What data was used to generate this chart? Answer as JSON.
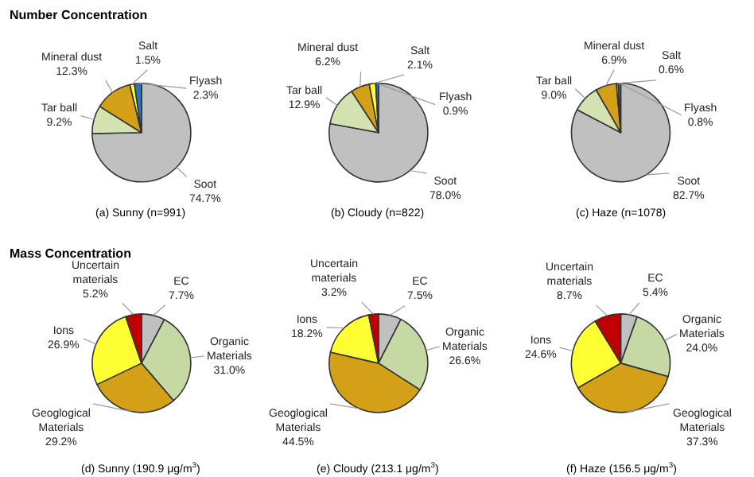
{
  "chart_data": [
    {
      "type": "pie",
      "title": "Number Concentration",
      "annotations": [
        "(a) Sunny (n=991)"
      ],
      "categories": [
        "Soot",
        "Tar ball",
        "Mineral dust",
        "Salt",
        "Flyash"
      ],
      "values": [
        74.7,
        9.2,
        12.3,
        1.5,
        2.3
      ],
      "value_labels": [
        "74.7%",
        "9.2%",
        "12.3%",
        "1.5%",
        "2.3%"
      ],
      "colors": [
        "#c0c0c0",
        "#d3e2b0",
        "#d4a017",
        "#ffff33",
        "#2e75b6"
      ]
    },
    {
      "type": "pie",
      "annotations": [
        "(b) Cloudy (n=822)"
      ],
      "categories": [
        "Soot",
        "Tar ball",
        "Mineral dust",
        "Salt",
        "Flyash"
      ],
      "values": [
        78.0,
        12.9,
        6.2,
        2.1,
        0.9
      ],
      "value_labels": [
        "78.0%",
        "12.9%",
        "6.2%",
        "2.1%",
        "0.9%"
      ],
      "colors": [
        "#c0c0c0",
        "#d3e2b0",
        "#d4a017",
        "#ffff33",
        "#2e75b6"
      ]
    },
    {
      "type": "pie",
      "annotations": [
        "(c) Haze (n=1078)"
      ],
      "categories": [
        "Soot",
        "Tar ball",
        "Mineral dust",
        "Salt",
        "Flyash"
      ],
      "values": [
        82.7,
        9.0,
        6.9,
        0.6,
        0.8
      ],
      "value_labels": [
        "82.7%",
        "9.0%",
        "6.9%",
        "0.6%",
        "0.8%"
      ],
      "colors": [
        "#c0c0c0",
        "#d3e2b0",
        "#d4a017",
        "#ffff33",
        "#2e75b6"
      ]
    },
    {
      "type": "pie",
      "title": "Mass Concentration",
      "annotations": [
        "(d) Sunny (190.9 μg/m$^{3}$)"
      ],
      "categories": [
        "EC",
        "Organic\nMaterials",
        "Geoglogical\nMaterials",
        "Ions",
        "Uncertain\nmaterials"
      ],
      "values": [
        7.7,
        31.0,
        29.2,
        26.9,
        5.2
      ],
      "value_labels": [
        "7.7%",
        "31.0%",
        "29.2%",
        "26.9%",
        "5.2%"
      ],
      "colors": [
        "#c0c0c0",
        "#c6d9a4",
        "#d4a017",
        "#ffff33",
        "#c00000"
      ]
    },
    {
      "type": "pie",
      "annotations": [
        "(e) Cloudy (213.1 μg/m$^{3}$)"
      ],
      "categories": [
        "EC",
        "Organic\nMaterials",
        "Geoglogical\nMaterials",
        "Ions",
        "Uncertain\nmaterials"
      ],
      "values": [
        7.5,
        26.6,
        44.5,
        18.2,
        3.2
      ],
      "value_labels": [
        "7.5%",
        "26.6%",
        "44.5%",
        "18.2%",
        "3.2%"
      ],
      "colors": [
        "#c0c0c0",
        "#c6d9a4",
        "#d4a017",
        "#ffff33",
        "#c00000"
      ]
    },
    {
      "type": "pie",
      "annotations": [
        "(f) Haze (156.5 μg/m$^{3}$)"
      ],
      "categories": [
        "EC",
        "Organic\nMaterials",
        "Geoglogical\nMaterials",
        "Ions",
        "Uncertain\nmaterials"
      ],
      "values": [
        5.4,
        24.0,
        37.3,
        24.6,
        8.7
      ],
      "value_labels": [
        "5.4%",
        "24.0%",
        "37.3%",
        "24.6%",
        "8.7%"
      ],
      "colors": [
        "#c0c0c0",
        "#c6d9a4",
        "#d4a017",
        "#ffff33",
        "#c00000"
      ]
    }
  ]
}
